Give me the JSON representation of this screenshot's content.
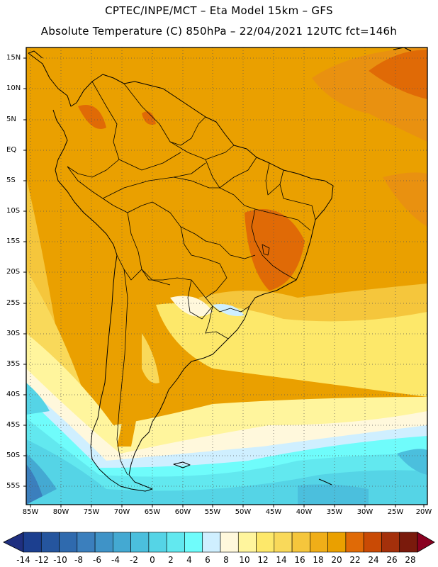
{
  "header": {
    "line1": "CPTEC/INPE/MCT –   Eta Model 15km – GFS",
    "line2": "Absolute Temperature (C) 850hPa – 22/04/2021 12UTC fct=146h"
  },
  "map": {
    "lat_labels": [
      "15N",
      "10N",
      "5N",
      "EQ",
      "5S",
      "10S",
      "15S",
      "20S",
      "25S",
      "30S",
      "35S",
      "40S",
      "45S",
      "50S",
      "55S"
    ],
    "lon_labels": [
      "85W",
      "80W",
      "75W",
      "70W",
      "65W",
      "60W",
      "55W",
      "50W",
      "45W",
      "40W",
      "35W",
      "30W",
      "25W",
      "20W"
    ]
  },
  "colorbar": {
    "labels": [
      "-14",
      "-12",
      "-10",
      "-8",
      "-6",
      "-4",
      "-2",
      "0",
      "2",
      "4",
      "6",
      "8",
      "10",
      "12",
      "14",
      "16",
      "18",
      "20",
      "22",
      "24",
      "26",
      "28"
    ],
    "colors": [
      "#1c3f8f",
      "#25559e",
      "#2f6aae",
      "#3b7fbd",
      "#3f93c7",
      "#44a9d2",
      "#4bbfdd",
      "#55d4e6",
      "#62e8ef",
      "#6ffcfb",
      "#cfefff",
      "#fff8dc",
      "#fff59d",
      "#fde86a",
      "#f9d95a",
      "#f5c63c",
      "#f0ae18",
      "#eaa000",
      "#e06a06",
      "#c94a05",
      "#a4300b",
      "#7a1a0c"
    ],
    "end_low_color": "#1f2f80",
    "end_high_color": "#8a0020"
  }
}
